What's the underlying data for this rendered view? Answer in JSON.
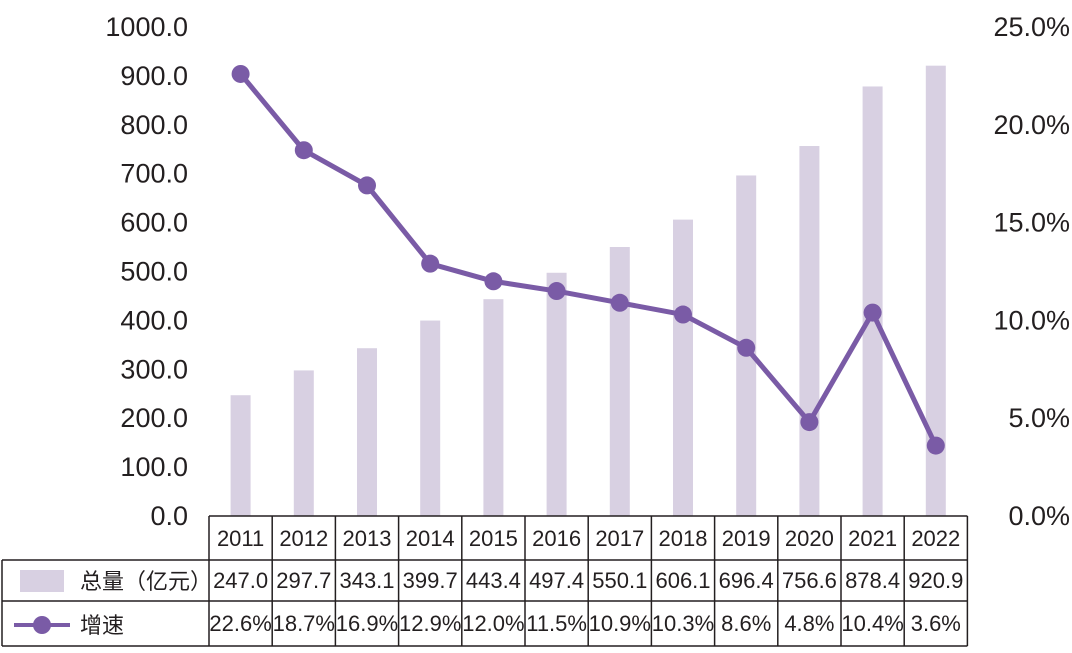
{
  "colors": {
    "bar": "#d8d0e2",
    "line": "#7a5ba6",
    "text": "#231f20",
    "table_border": "#231f20"
  },
  "chart_data": {
    "type": "bar",
    "categories": [
      "2011",
      "2012",
      "2013",
      "2014",
      "2015",
      "2016",
      "2017",
      "2018",
      "2019",
      "2020",
      "2021",
      "2022"
    ],
    "series": [
      {
        "name": "总量（亿元）",
        "type": "bar",
        "axis": "left",
        "values": [
          247.0,
          297.7,
          343.1,
          399.7,
          443.4,
          497.4,
          550.1,
          606.1,
          696.4,
          756.6,
          878.4,
          920.9
        ],
        "value_labels": [
          "247.0",
          "297.7",
          "343.1",
          "399.7",
          "443.4",
          "497.4",
          "550.1",
          "606.1",
          "696.4",
          "756.6",
          "878.4",
          "920.9"
        ]
      },
      {
        "name": "增速",
        "type": "line",
        "axis": "right",
        "values": [
          22.6,
          18.7,
          16.9,
          12.9,
          12.0,
          11.5,
          10.9,
          10.3,
          8.6,
          4.8,
          10.4,
          3.6
        ],
        "value_labels": [
          "22.6%",
          "18.7%",
          "16.9%",
          "12.9%",
          "12.0%",
          "11.5%",
          "10.9%",
          "10.3%",
          "8.6%",
          "4.8%",
          "10.4%",
          "3.6%"
        ]
      }
    ],
    "left_axis": {
      "range": [
        0,
        1000
      ],
      "ticks": [
        0,
        100,
        200,
        300,
        400,
        500,
        600,
        700,
        800,
        900,
        1000
      ],
      "tick_labels": [
        "0.0",
        "100.0",
        "200.0",
        "300.0",
        "400.0",
        "500.0",
        "600.0",
        "700.0",
        "800.0",
        "900.0",
        "1000.0"
      ]
    },
    "right_axis": {
      "range": [
        0,
        25
      ],
      "ticks": [
        0,
        5,
        10,
        15,
        20,
        25
      ],
      "tick_labels": [
        "0.0%",
        "5.0%",
        "10.0%",
        "15.0%",
        "20.0%",
        "25.0%"
      ]
    },
    "grid": false,
    "legend": "data-table-bottom"
  }
}
